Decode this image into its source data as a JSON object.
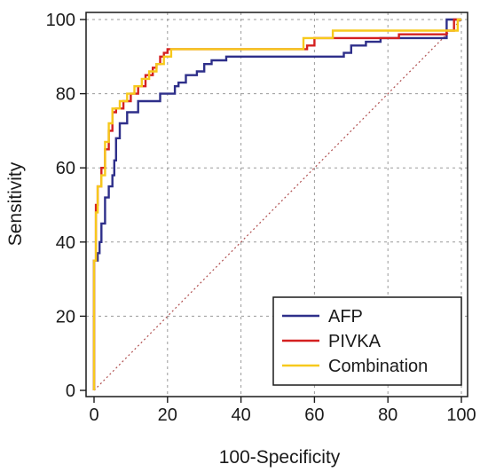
{
  "chart_data": {
    "type": "line",
    "title": "",
    "xlabel": "100-Specificity",
    "ylabel": "Sensitivity",
    "xlim": [
      0,
      100
    ],
    "ylim": [
      0,
      100
    ],
    "x_ticks": [
      "0",
      "20",
      "40",
      "60",
      "80",
      "100"
    ],
    "y_ticks": [
      "0",
      "20",
      "40",
      "60",
      "80",
      "100"
    ],
    "grid": true,
    "legend_position": "bottom-right",
    "reference_line": {
      "x": [
        0,
        100
      ],
      "y": [
        0,
        100
      ],
      "color": "#b05050",
      "style": "dotted"
    },
    "series": [
      {
        "name": "AFP",
        "color": "#2e2f8a",
        "x": [
          0,
          0,
          1,
          1,
          1.5,
          1.5,
          2,
          2,
          3,
          3,
          4,
          4,
          5,
          5,
          5.5,
          5.5,
          6,
          6,
          7,
          7,
          9,
          9,
          12,
          12,
          18,
          18,
          22,
          22,
          23,
          23,
          25,
          25,
          28,
          28,
          30,
          30,
          32,
          32,
          36,
          36,
          37,
          37,
          68,
          68,
          70,
          70,
          74,
          74,
          78,
          78,
          96,
          96,
          100
        ],
        "y": [
          0,
          35,
          35,
          37,
          37,
          40,
          40,
          45,
          45,
          52,
          52,
          55,
          55,
          58,
          58,
          62,
          62,
          68,
          68,
          72,
          72,
          75,
          75,
          78,
          78,
          80,
          80,
          82,
          82,
          83,
          83,
          85,
          85,
          86,
          86,
          88,
          88,
          89,
          89,
          90,
          90,
          90,
          90,
          91,
          91,
          93,
          93,
          94,
          94,
          95,
          95,
          100,
          100
        ]
      },
      {
        "name": "PIVKA",
        "color": "#d42020",
        "x": [
          0,
          0,
          0.5,
          0.5,
          1,
          1,
          2,
          2,
          3,
          3,
          4,
          4,
          5,
          5,
          6,
          6,
          8,
          8,
          10,
          10,
          12,
          12,
          14,
          14,
          16,
          16,
          17,
          17,
          18,
          18,
          19,
          19,
          20,
          20,
          58,
          58,
          60,
          60,
          83,
          83,
          96,
          96,
          98,
          98,
          100
        ],
        "y": [
          0,
          35,
          35,
          50,
          50,
          55,
          55,
          60,
          60,
          65,
          65,
          70,
          70,
          75,
          75,
          76,
          76,
          78,
          78,
          80,
          80,
          82,
          82,
          85,
          85,
          87,
          87,
          88,
          88,
          90,
          90,
          91,
          91,
          92,
          92,
          93,
          93,
          95,
          95,
          96,
          96,
          97,
          97,
          100,
          100
        ]
      },
      {
        "name": "Combination",
        "color": "#f7c91c",
        "x": [
          0,
          0,
          0.5,
          0.5,
          1,
          1,
          2,
          2,
          3,
          3,
          4,
          4,
          5,
          5,
          7,
          7,
          9,
          9,
          11,
          11,
          13,
          13,
          15,
          15,
          17,
          17,
          19,
          19,
          21,
          21,
          57,
          57,
          65,
          65,
          99,
          99,
          100
        ],
        "y": [
          0,
          35,
          35,
          48,
          48,
          55,
          55,
          58,
          58,
          67,
          67,
          72,
          72,
          76,
          76,
          78,
          78,
          80,
          80,
          82,
          82,
          84,
          84,
          86,
          86,
          88,
          88,
          90,
          90,
          92,
          92,
          95,
          95,
          97,
          97,
          100,
          100
        ]
      }
    ]
  }
}
